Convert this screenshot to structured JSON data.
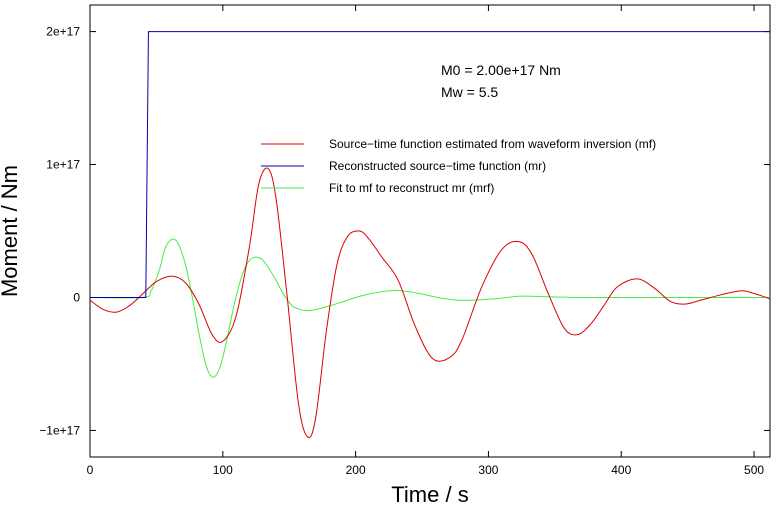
{
  "chart_data": {
    "type": "line",
    "xlabel": "Time / s",
    "ylabel": "Moment / Nm",
    "xlim": [
      0,
      512
    ],
    "ylim": [
      -1.2e+17,
      2.2e+17
    ],
    "x_ticks": [
      0,
      100,
      200,
      300,
      400,
      500
    ],
    "x_tick_labels": [
      "0",
      "100",
      "200",
      "300",
      "400",
      "500"
    ],
    "y_ticks": [
      -1e+17,
      0,
      1e+17,
      2e+17
    ],
    "y_tick_labels": [
      "−1e+17",
      "0",
      "1e+17",
      "2e+17"
    ],
    "annotations": [
      "M0 = 2.00e+17 Nm",
      "Mw = 5.5"
    ],
    "legend_position": "top-right",
    "series": [
      {
        "name": "Source−time function estimated from waveform inversion (mf)",
        "color": "#dd0000",
        "x": [
          0,
          10,
          20,
          30,
          40,
          50,
          62,
          72,
          82,
          92,
          100,
          110,
          120,
          127,
          134,
          140,
          148,
          157,
          164,
          170,
          178,
          186,
          194,
          203,
          210,
          220,
          232,
          245,
          258,
          271,
          280,
          295,
          310,
          323,
          333,
          345,
          357,
          367,
          377,
          387,
          397,
          412,
          425,
          437,
          448,
          460,
          475,
          490,
          500,
          512
        ],
        "y": [
          -2000000000000000.0,
          -9000000000000000.0,
          -1.1e+16,
          -6000000000000000.0,
          3000000000000000.0,
          1.2e+16,
          1.6e+16,
          1.1e+16,
          -5000000000000000.0,
          -2.8e+16,
          -3.3e+16,
          -1.4e+16,
          3.8e+16,
          8.5e+16,
          9.7e+16,
          7.5e+16,
          5000000000000000.0,
          -8e+16,
          -1.05e+17,
          -9e+16,
          -2.5e+16,
          2.5e+16,
          4.6e+16,
          5e+16,
          4.4e+16,
          3e+16,
          1.3e+16,
          -2.2e+16,
          -4.6e+16,
          -4.5e+16,
          -3.2e+16,
          8000000000000000.0,
          3.6e+16,
          4.2e+16,
          3.2e+16,
          3000000000000000.0,
          -2.3e+16,
          -2.8e+16,
          -2e+16,
          -6000000000000000.0,
          8000000000000000.0,
          1.4e+16,
          7000000000000000.0,
          -3000000000000000.0,
          -5000000000000000.0,
          -2000000000000000.0,
          2000000000000000.0,
          5000000000000000.0,
          3000000000000000.0,
          -1000000000000000.0
        ]
      },
      {
        "name": "Reconstructed source−time function (mr)",
        "color": "#0000aa",
        "x": [
          0,
          42,
          44,
          512
        ],
        "y": [
          0,
          0,
          2e+17,
          2e+17
        ]
      },
      {
        "name": "Fit to mf to reconstruct mr (mrf)",
        "color": "#44ee44",
        "x": [
          0,
          40,
          46,
          52,
          57,
          63,
          68,
          73,
          78,
          83,
          88,
          93,
          98,
          103,
          108,
          113,
          118,
          123,
          129,
          134,
          140,
          146,
          152,
          158,
          164,
          170,
          178,
          188,
          200,
          212,
          225,
          235,
          248,
          262,
          276,
          290,
          305,
          325,
          345,
          370,
          400,
          512
        ],
        "y": [
          0,
          0,
          5000000000000000.0,
          2e+16,
          3.8e+16,
          4.4e+16,
          3.7e+16,
          2e+16,
          -5000000000000000.0,
          -3.2e+16,
          -5.3e+16,
          -6e+16,
          -5.2e+16,
          -3.2e+16,
          -8000000000000000.0,
          1.2e+16,
          2.5e+16,
          3e+16,
          2.9e+16,
          2.3e+16,
          1.3e+16,
          2000000000000000.0,
          -6000000000000000.0,
          -9000000000000000.0,
          -1e+16,
          -9000000000000000.0,
          -7000000000000000.0,
          -4000000000000000.0,
          0.0,
          3000000000000000.0,
          5000000000000000.0,
          5000000000000000.0,
          3000000000000000.0,
          0.0,
          -2000000000000000.0,
          -2000000000000000.0,
          -1000000000000000.0,
          1000000000000000.0,
          500000000000000.0,
          0.0,
          0.0,
          0.0
        ]
      }
    ]
  }
}
